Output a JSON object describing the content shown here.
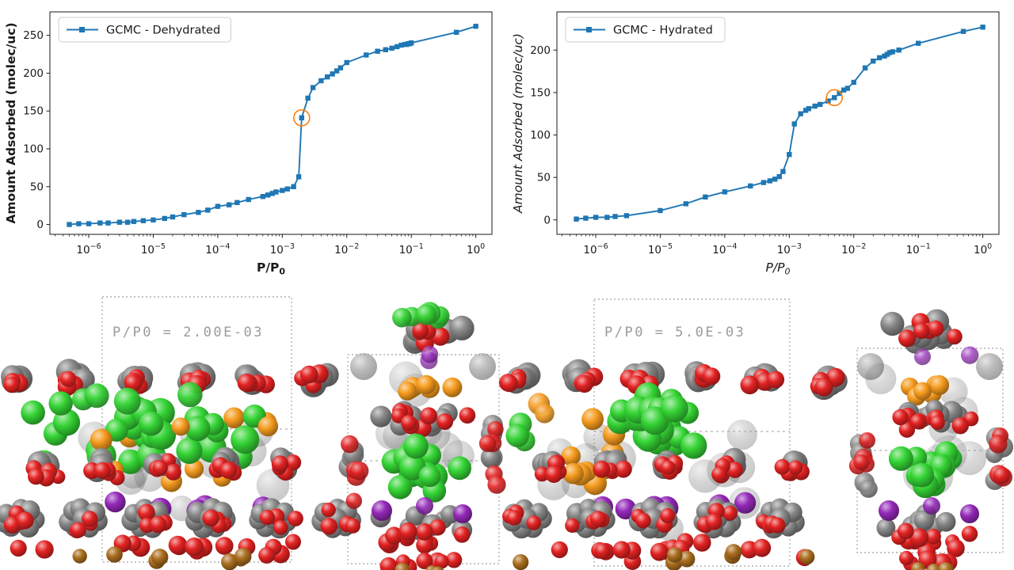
{
  "chart_data": [
    {
      "type": "line",
      "legend": "GCMC - Dehydrated",
      "xlabel": "P/P0",
      "ylabel": "Amount Adsorbed (molec/uc)",
      "label_style": "bold",
      "x_scale": "log",
      "xlim": [
        2.5e-07,
        1.78
      ],
      "ylim": [
        -13,
        281
      ],
      "x_tick_exponents": [
        -6,
        -5,
        -4,
        -3,
        -2,
        -1,
        0
      ],
      "y_ticks": [
        0,
        50,
        100,
        150,
        200,
        250
      ],
      "line_color": "#1f77b4",
      "highlight": {
        "x": 0.002,
        "y": 141,
        "color": "#ff7f0e"
      },
      "x": [
        5e-07,
        7e-07,
        1e-06,
        1.5e-06,
        2e-06,
        3e-06,
        4e-06,
        5e-06,
        7e-06,
        1e-05,
        1.5e-05,
        2e-05,
        3e-05,
        5e-05,
        7e-05,
        0.0001,
        0.00015,
        0.0002,
        0.0003,
        0.0005,
        0.0006,
        0.0007,
        0.0008,
        0.001,
        0.0012,
        0.0015,
        0.0018,
        0.002,
        0.0025,
        0.003,
        0.004,
        0.005,
        0.006,
        0.007,
        0.008,
        0.01,
        0.02,
        0.03,
        0.04,
        0.05,
        0.06,
        0.07,
        0.08,
        0.085,
        0.09,
        0.095,
        0.1,
        0.5,
        1
      ],
      "y": [
        0,
        1,
        1,
        2,
        2,
        3,
        3,
        4,
        5,
        6,
        8,
        10,
        13,
        16,
        19,
        24,
        26,
        29,
        33,
        37,
        39,
        41,
        43,
        45,
        47,
        50,
        63,
        141,
        167,
        181,
        190,
        195,
        199,
        203,
        207,
        214,
        224,
        229,
        231,
        233,
        235,
        237,
        238,
        238,
        239,
        239,
        240,
        254,
        262
      ]
    },
    {
      "type": "line",
      "legend": "GCMC - Hydrated",
      "xlabel": "P/P0",
      "ylabel": "Amount Adsorbed (molec/uc)",
      "label_style": "italic",
      "x_scale": "log",
      "xlim": [
        2.5e-07,
        1.78
      ],
      "ylim": [
        -17,
        245
      ],
      "x_tick_exponents": [
        -6,
        -5,
        -4,
        -3,
        -2,
        -1,
        0
      ],
      "y_ticks": [
        0,
        50,
        100,
        150,
        200
      ],
      "line_color": "#1f77b4",
      "highlight": {
        "x": 0.005,
        "y": 144,
        "color": "#ff7f0e"
      },
      "x": [
        5e-07,
        7e-07,
        1e-06,
        1.5e-06,
        2e-06,
        3e-06,
        1e-05,
        2.5e-05,
        5e-05,
        0.0001,
        0.00025,
        0.0004,
        0.0005,
        0.0006,
        0.0007,
        0.0008,
        0.001,
        0.0012,
        0.0015,
        0.0018,
        0.002,
        0.0025,
        0.003,
        0.004,
        0.005,
        0.006,
        0.007,
        0.008,
        0.01,
        0.015,
        0.02,
        0.025,
        0.03,
        0.033,
        0.036,
        0.04,
        0.05,
        0.1,
        0.5,
        1
      ],
      "y": [
        1,
        2,
        3,
        3,
        4,
        5,
        11,
        19,
        27,
        33,
        40,
        44,
        46,
        48,
        51,
        57,
        77,
        113,
        125,
        129,
        131,
        134,
        136,
        140,
        144,
        149,
        153,
        155,
        162,
        179,
        187,
        191,
        193,
        195,
        197,
        198,
        200,
        208,
        222,
        227
      ]
    }
  ],
  "structures": {
    "label_color": "#9b9b9b",
    "box_color": "#8a8a8a",
    "atom_colors": {
      "carbon": "#868686",
      "oxygen": "#e32222",
      "green": "#35d435",
      "orange": "#f59b1e",
      "purple": "#9328b8",
      "brown": "#aa6d1e"
    },
    "panels": [
      {
        "id": "dehydrated-side",
        "view": "side",
        "label": "P/P0 = 2.00E-03"
      },
      {
        "id": "dehydrated-front",
        "view": "front",
        "label": ""
      },
      {
        "id": "hydrated-side",
        "view": "side",
        "label": "P/P0 = 5.0E-03"
      },
      {
        "id": "hydrated-front",
        "view": "front",
        "label": ""
      }
    ]
  }
}
